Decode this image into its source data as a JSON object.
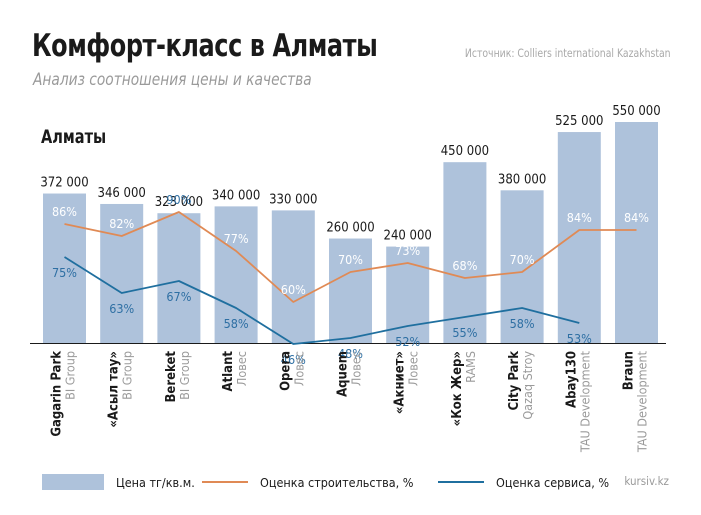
{
  "title": "Комфорт-класс в Алматы",
  "subtitle": "Анализ соотношения цены и качества",
  "source": "Источник: Colliers international Kazakhstan",
  "city_label": "Алматы",
  "watermark": "kursiv.kz",
  "legend": {
    "price": "Цена тг/кв.м.",
    "construction": "Оценка строительства, %",
    "service": "Оценка сервиса, %"
  },
  "colors": {
    "bar": "#aec2db",
    "construction": "#e08a55",
    "service": "#1f6f9f",
    "in_bar_label": "#ffffff",
    "below_bar_label": "#2e6fa3",
    "developer": "#9a9a9a"
  },
  "chart_data": {
    "type": "bar",
    "categories": [
      "Gagarin Park",
      "«Асыл тау»",
      "Bereket",
      "Atlant",
      "Opera",
      "Aquem",
      "«Акниет»",
      "«Кок Жер»",
      "City Park",
      "Abay130",
      "Braun"
    ],
    "developers": [
      "BI Group",
      "BI Group",
      "BI Group",
      "Ловес",
      "Ловес",
      "Ловес",
      "Ловес",
      "RAMS",
      "Qazaq Stroy",
      "TAU Development",
      "TAU Development"
    ],
    "series": [
      {
        "name": "Цена тг/кв.м.",
        "type": "bar",
        "values": [
          372000,
          346000,
          323000,
          340000,
          330000,
          260000,
          240000,
          450000,
          380000,
          525000,
          550000
        ]
      },
      {
        "name": "Оценка строительства, %",
        "type": "line",
        "values": [
          86,
          82,
          90,
          77,
          60,
          70,
          73,
          68,
          70,
          84,
          84
        ]
      },
      {
        "name": "Оценка сервиса, %",
        "type": "line",
        "values": [
          75,
          63,
          67,
          58,
          46,
          48,
          52,
          55,
          58,
          53,
          null
        ]
      }
    ],
    "value_labels": [
      "372 000",
      "346 000",
      "323 000",
      "340 000",
      "330 000",
      "260 000",
      "240 000",
      "450 000",
      "380 000",
      "525 000",
      "550 000"
    ],
    "construction_labels": [
      "86%",
      "82%",
      "90%",
      "77%",
      "60%",
      "70%",
      "73%",
      "68%",
      "70%",
      "84%",
      "84%"
    ],
    "service_labels": [
      "75%",
      "63%",
      "67%",
      "58%",
      "46%",
      "48%",
      "52%",
      "55%",
      "58%",
      "53%"
    ],
    "price_range": [
      0,
      550000
    ],
    "percent_range": [
      0,
      100
    ],
    "grid": false,
    "legend_position": "bottom"
  }
}
